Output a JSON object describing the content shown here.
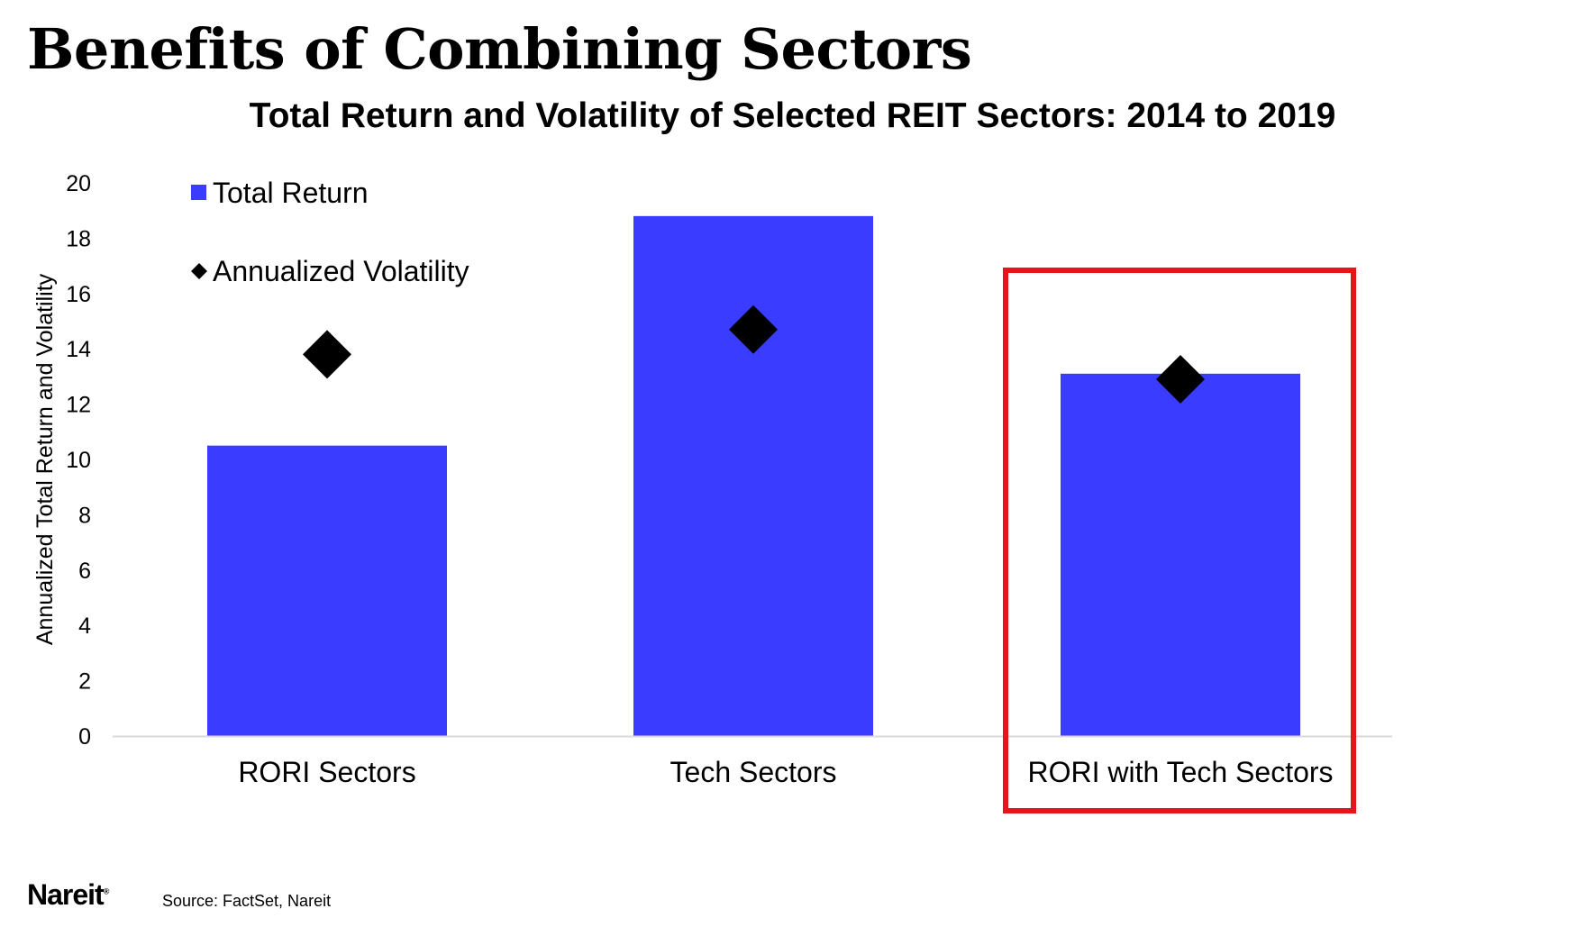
{
  "slide": {
    "title": "Benefits of Combining Sectors"
  },
  "footer": {
    "logo_text": "Nareit",
    "logo_mark": "®",
    "source": "Source: FactSet, Nareit"
  },
  "colors": {
    "bar": "#3a3cff",
    "marker": "#000000",
    "highlight": "#e8141c",
    "axis": "#d9d9d9"
  },
  "chart_data": {
    "type": "bar",
    "title": "Total Return and Volatility of Selected REIT Sectors: 2014 to 2019",
    "xlabel": "",
    "ylabel": "Annualized Total Return and Volatility",
    "ylim": [
      0,
      20
    ],
    "yticks": [
      0,
      2,
      4,
      6,
      8,
      10,
      12,
      14,
      16,
      18,
      20
    ],
    "categories": [
      "RORI Sectors",
      "Tech Sectors",
      "RORI with Tech Sectors"
    ],
    "series": [
      {
        "name": "Total Return",
        "kind": "bar",
        "values": [
          10.5,
          18.8,
          13.1
        ]
      },
      {
        "name": "Annualized Volatility",
        "kind": "diamond-marker",
        "values": [
          13.8,
          14.7,
          12.9
        ]
      }
    ],
    "legend_position": "top-left",
    "grid": false,
    "highlighted_category": "RORI with Tech Sectors"
  }
}
